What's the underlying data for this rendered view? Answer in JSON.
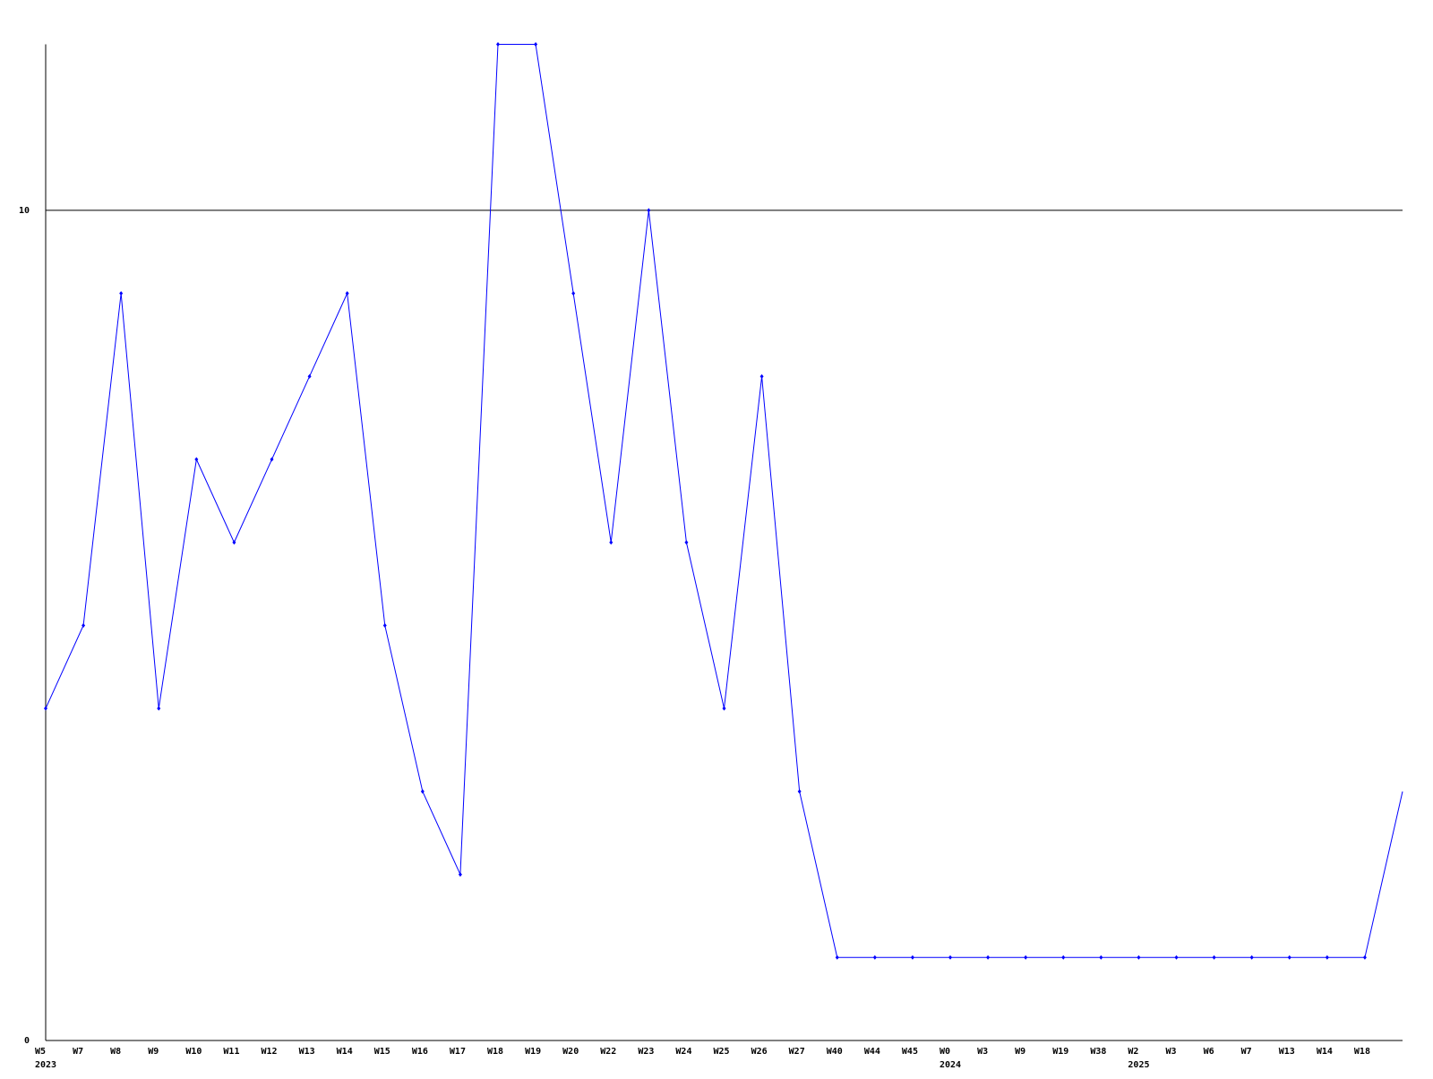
{
  "chart_data": {
    "type": "line",
    "title": "",
    "xlabel": "",
    "ylabel": "",
    "ylim": [
      0,
      12
    ],
    "yticks": [
      {
        "value": 0,
        "label": "0"
      },
      {
        "value": 10,
        "label": "10"
      }
    ],
    "reference_line": 10,
    "grid": false,
    "line_color": "#0000ff",
    "x": [
      "W5",
      "W7",
      "W8",
      "W9",
      "W10",
      "W11",
      "W12",
      "W13",
      "W14",
      "W15",
      "W16",
      "W17",
      "W18",
      "W19",
      "W20",
      "W22",
      "W23",
      "W24",
      "W25",
      "W26",
      "W27",
      "W40",
      "W44",
      "W45",
      "W0",
      "W3",
      "W9",
      "W19",
      "W38",
      "W2",
      "W3",
      "W6",
      "W7",
      "W13",
      "W14",
      "W18",
      ""
    ],
    "year_labels": [
      {
        "index": 0,
        "label": "2023"
      },
      {
        "index": 24,
        "label": "2024"
      },
      {
        "index": 29,
        "label": "2025"
      }
    ],
    "series": [
      {
        "values": [
          4,
          5,
          9,
          4,
          7,
          6,
          7,
          8,
          9,
          5,
          3,
          2,
          12,
          12,
          9,
          6,
          10,
          6,
          4,
          8,
          3,
          1,
          1,
          1,
          1,
          1,
          1,
          1,
          1,
          1,
          1,
          1,
          1,
          1,
          1,
          1,
          3
        ]
      }
    ]
  }
}
